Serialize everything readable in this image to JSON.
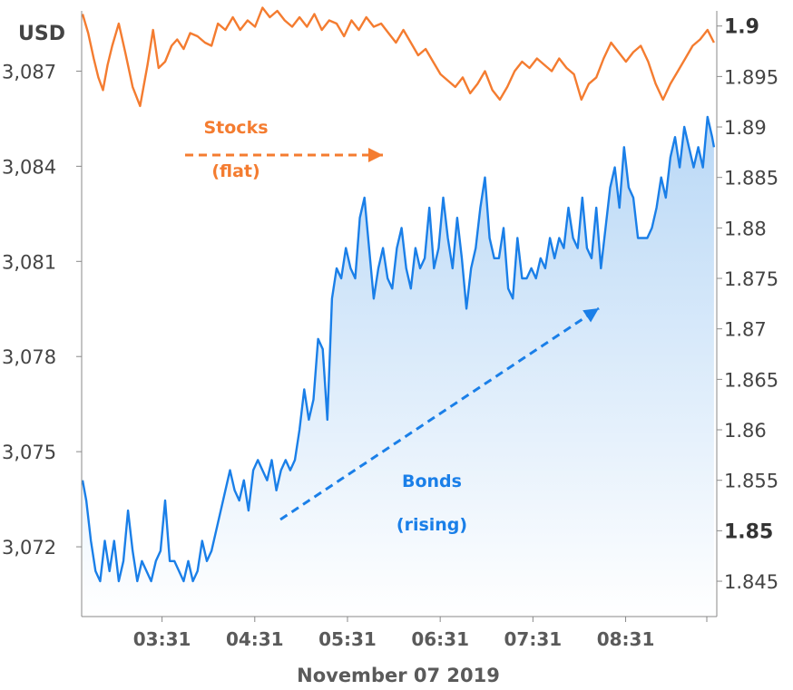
{
  "chart_data": {
    "type": "line",
    "title": "",
    "xlabel": "November 07 2019",
    "left_axis": {
      "unit_label": "USD",
      "ticks": [
        "3,072",
        "3,075",
        "3,078",
        "3,081",
        "3,084",
        "3,087"
      ],
      "tick_values": [
        3072,
        3075,
        3078,
        3081,
        3084,
        3087
      ],
      "range": [
        3069.8,
        3088.9
      ]
    },
    "right_axis": {
      "ticks": [
        "1.845",
        "1.85",
        "1.855",
        "1.86",
        "1.865",
        "1.87",
        "1.875",
        "1.88",
        "1.885",
        "1.89",
        "1.895",
        "1.9"
      ],
      "tick_values": [
        1.845,
        1.85,
        1.855,
        1.86,
        1.865,
        1.87,
        1.875,
        1.88,
        1.885,
        1.89,
        1.895,
        1.9
      ],
      "bold_ticks": [
        "1.85",
        "1.9"
      ],
      "range": [
        1.8415,
        1.9015
      ]
    },
    "x_axis": {
      "ticks": [
        "03:31",
        "04:31",
        "05:31",
        "06:31",
        "07:31",
        "08:31"
      ],
      "tick_hours": [
        3.517,
        4.517,
        5.517,
        6.517,
        7.517,
        8.517
      ],
      "range": [
        2.65,
        9.5
      ]
    },
    "grid": false,
    "legend": "none",
    "series": [
      {
        "axis": "left",
        "color": "#f47c30",
        "x": [
          2.66,
          2.72,
          2.78,
          2.83,
          2.88,
          2.93,
          2.98,
          3.05,
          3.12,
          3.2,
          3.28,
          3.36,
          3.42,
          3.48,
          3.55,
          3.62,
          3.68,
          3.75,
          3.82,
          3.9,
          3.98,
          4.05,
          4.12,
          4.2,
          4.28,
          4.36,
          4.44,
          4.52,
          4.6,
          4.68,
          4.76,
          4.84,
          4.92,
          5.0,
          5.08,
          5.16,
          5.24,
          5.32,
          5.4,
          5.48,
          5.56,
          5.64,
          5.72,
          5.8,
          5.88,
          5.96,
          6.04,
          6.12,
          6.2,
          6.28,
          6.36,
          6.44,
          6.52,
          6.6,
          6.68,
          6.76,
          6.84,
          6.92,
          7.0,
          7.08,
          7.16,
          7.24,
          7.32,
          7.4,
          7.48,
          7.56,
          7.64,
          7.72,
          7.8,
          7.88,
          7.96,
          8.04,
          8.12,
          8.2,
          8.28,
          8.36,
          8.44,
          8.52,
          8.6,
          8.68,
          8.76,
          8.84,
          8.92,
          9.0,
          9.08,
          9.16,
          9.24,
          9.32,
          9.4,
          9.47
        ],
        "y": [
          3088.8,
          3088.2,
          3087.4,
          3086.8,
          3086.4,
          3087.2,
          3087.8,
          3088.5,
          3087.6,
          3086.5,
          3085.9,
          3087.2,
          3088.3,
          3087.1,
          3087.3,
          3087.8,
          3088.0,
          3087.7,
          3088.2,
          3088.1,
          3087.9,
          3087.8,
          3088.5,
          3088.3,
          3088.7,
          3088.3,
          3088.6,
          3088.4,
          3089.0,
          3088.7,
          3088.9,
          3088.6,
          3088.4,
          3088.7,
          3088.4,
          3088.8,
          3088.3,
          3088.6,
          3088.5,
          3088.1,
          3088.6,
          3088.3,
          3088.7,
          3088.4,
          3088.5,
          3088.2,
          3087.9,
          3088.3,
          3087.9,
          3087.5,
          3087.7,
          3087.3,
          3086.9,
          3086.7,
          3086.5,
          3086.8,
          3086.3,
          3086.6,
          3087.0,
          3086.4,
          3086.1,
          3086.5,
          3087.0,
          3087.3,
          3087.1,
          3087.4,
          3087.2,
          3087.0,
          3087.4,
          3087.1,
          3086.9,
          3086.1,
          3086.6,
          3086.8,
          3087.4,
          3087.9,
          3087.6,
          3087.3,
          3087.6,
          3087.8,
          3087.3,
          3086.6,
          3086.1,
          3086.6,
          3087.0,
          3087.4,
          3087.8,
          3088.0,
          3088.3,
          3087.9
        ]
      },
      {
        "axis": "right",
        "color": "#1a7fe8",
        "x": [
          2.66,
          2.7,
          2.75,
          2.8,
          2.85,
          2.9,
          2.95,
          3.0,
          3.05,
          3.1,
          3.15,
          3.2,
          3.25,
          3.3,
          3.35,
          3.4,
          3.45,
          3.5,
          3.55,
          3.6,
          3.65,
          3.7,
          3.75,
          3.8,
          3.85,
          3.9,
          3.95,
          4.0,
          4.05,
          4.1,
          4.15,
          4.2,
          4.25,
          4.3,
          4.35,
          4.4,
          4.45,
          4.5,
          4.55,
          4.6,
          4.65,
          4.7,
          4.75,
          4.8,
          4.85,
          4.9,
          4.95,
          5.0,
          5.05,
          5.1,
          5.15,
          5.2,
          5.25,
          5.3,
          5.35,
          5.4,
          5.45,
          5.5,
          5.55,
          5.6,
          5.65,
          5.7,
          5.75,
          5.8,
          5.85,
          5.9,
          5.95,
          6.0,
          6.05,
          6.1,
          6.15,
          6.2,
          6.25,
          6.3,
          6.35,
          6.4,
          6.45,
          6.5,
          6.55,
          6.6,
          6.65,
          6.7,
          6.75,
          6.8,
          6.85,
          6.9,
          6.95,
          7.0,
          7.05,
          7.1,
          7.15,
          7.2,
          7.25,
          7.3,
          7.35,
          7.4,
          7.45,
          7.5,
          7.55,
          7.6,
          7.65,
          7.7,
          7.75,
          7.8,
          7.85,
          7.9,
          7.95,
          8.0,
          8.05,
          8.1,
          8.15,
          8.2,
          8.25,
          8.3,
          8.35,
          8.4,
          8.45,
          8.5,
          8.55,
          8.6,
          8.65,
          8.7,
          8.75,
          8.8,
          8.85,
          8.9,
          8.95,
          9.0,
          9.05,
          9.1,
          9.15,
          9.2,
          9.25,
          9.3,
          9.35,
          9.4,
          9.45,
          9.47
        ],
        "y": [
          1.855,
          1.853,
          1.849,
          1.846,
          1.845,
          1.849,
          1.846,
          1.849,
          1.845,
          1.847,
          1.852,
          1.848,
          1.845,
          1.847,
          1.846,
          1.845,
          1.847,
          1.848,
          1.853,
          1.847,
          1.847,
          1.846,
          1.845,
          1.847,
          1.845,
          1.846,
          1.849,
          1.847,
          1.848,
          1.85,
          1.852,
          1.854,
          1.856,
          1.854,
          1.853,
          1.855,
          1.852,
          1.856,
          1.857,
          1.856,
          1.855,
          1.857,
          1.854,
          1.856,
          1.857,
          1.856,
          1.857,
          1.86,
          1.864,
          1.861,
          1.863,
          1.869,
          1.868,
          1.861,
          1.873,
          1.876,
          1.875,
          1.878,
          1.876,
          1.875,
          1.881,
          1.883,
          1.878,
          1.873,
          1.876,
          1.878,
          1.875,
          1.874,
          1.878,
          1.88,
          1.876,
          1.874,
          1.878,
          1.876,
          1.877,
          1.882,
          1.876,
          1.878,
          1.883,
          1.879,
          1.876,
          1.881,
          1.877,
          1.872,
          1.876,
          1.878,
          1.882,
          1.885,
          1.879,
          1.877,
          1.877,
          1.88,
          1.874,
          1.873,
          1.879,
          1.875,
          1.875,
          1.876,
          1.875,
          1.877,
          1.876,
          1.879,
          1.877,
          1.879,
          1.878,
          1.882,
          1.879,
          1.878,
          1.883,
          1.878,
          1.877,
          1.882,
          1.876,
          1.88,
          1.884,
          1.886,
          1.882,
          1.888,
          1.884,
          1.883,
          1.879,
          1.879,
          1.879,
          1.88,
          1.882,
          1.885,
          1.883,
          1.887,
          1.889,
          1.886,
          1.89,
          1.888,
          1.886,
          1.888,
          1.886,
          1.891,
          1.889,
          1.888
        ]
      }
    ],
    "annotations": [
      {
        "lines": [
          "Stocks",
          "(flat)"
        ],
        "color": "#f47c30"
      },
      {
        "lines": [
          "Bonds",
          "(rising)"
        ],
        "color": "#1a7fe8"
      }
    ]
  }
}
